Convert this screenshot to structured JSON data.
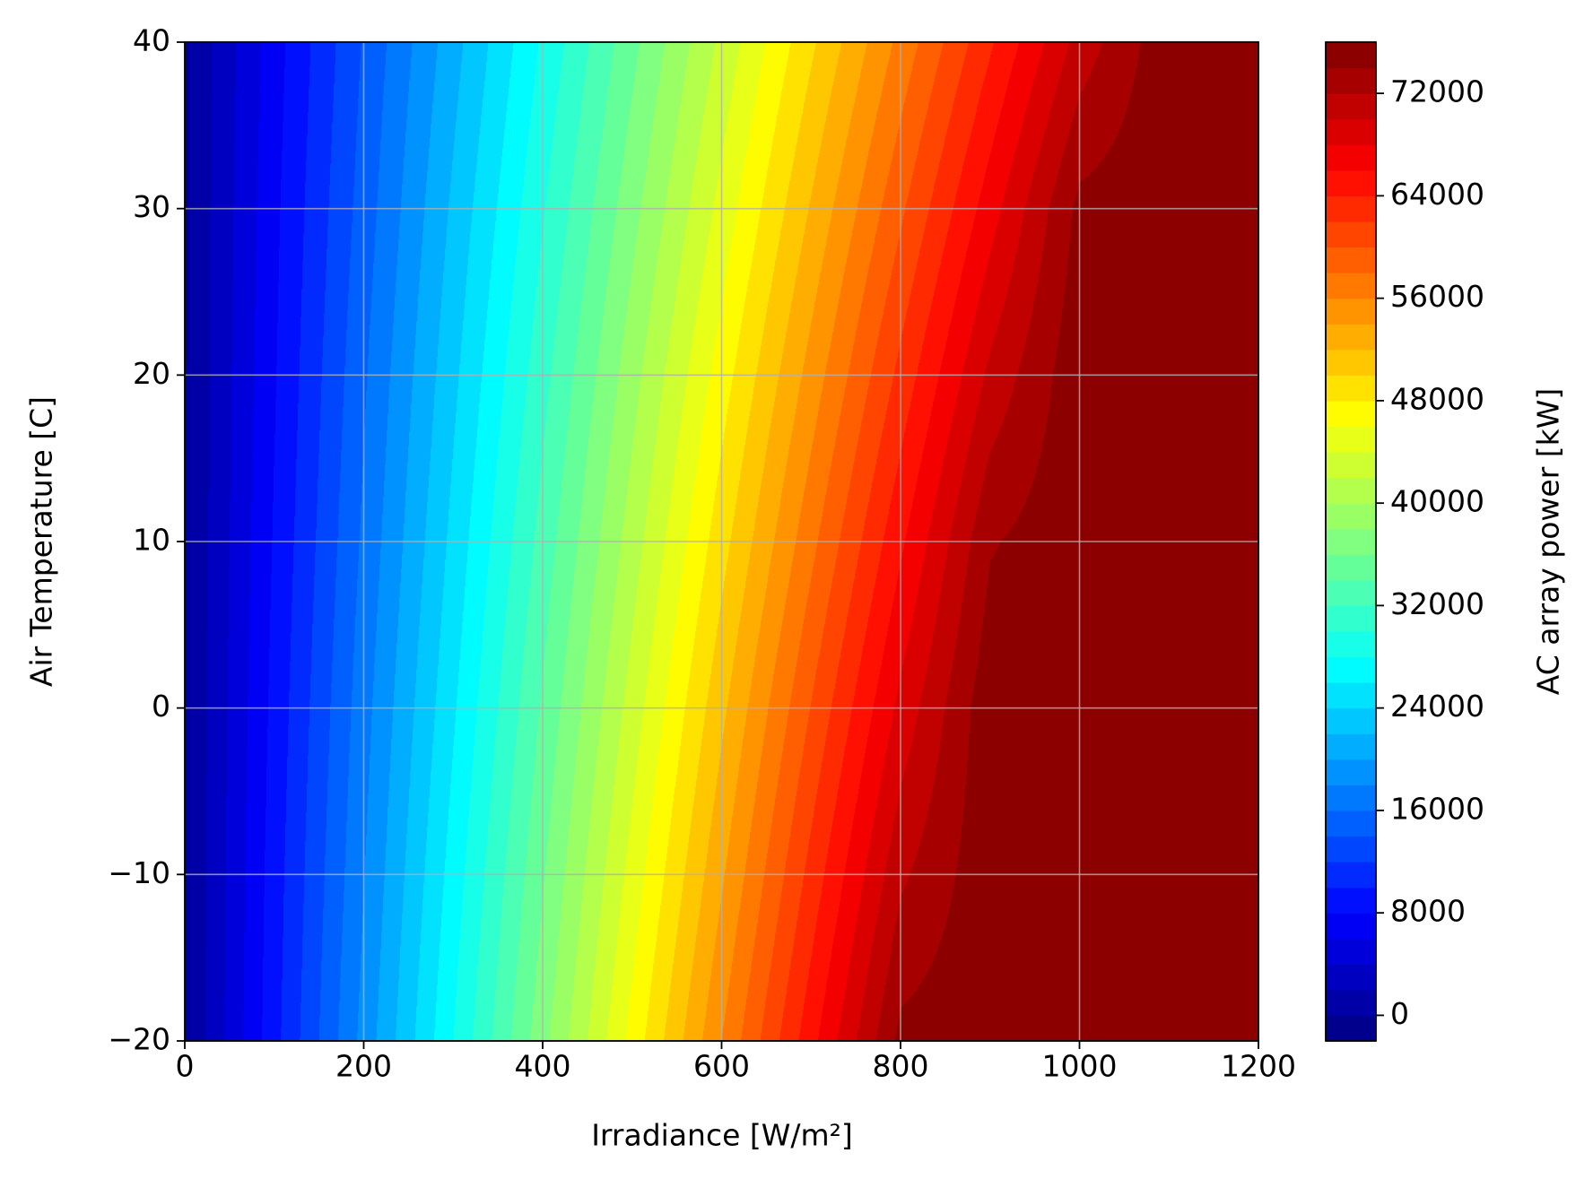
{
  "chart_data": {
    "type": "contourf",
    "xlabel": "Irradiance [W/m²]",
    "ylabel": "Air Temperature [C]",
    "colorbar_label": "AC array power [kW]",
    "colormap": "jet",
    "grid": true,
    "x": [
      0,
      100,
      200,
      300,
      400,
      500,
      600,
      700,
      800,
      900,
      1000,
      1100,
      1200
    ],
    "y": [
      -20,
      -10,
      0,
      10,
      20,
      30,
      40
    ],
    "z": [
      [
        -200,
        9300,
        18700,
        28000,
        37300,
        46700,
        56000,
        65300,
        74600,
        75500,
        75500,
        75500,
        75500
      ],
      [
        -200,
        9000,
        17900,
        26900,
        35800,
        44800,
        53700,
        62700,
        71600,
        75500,
        75500,
        75500,
        75500
      ],
      [
        -200,
        8600,
        17200,
        25700,
        34300,
        42900,
        51500,
        60100,
        68600,
        75500,
        75500,
        75500,
        75500
      ],
      [
        -200,
        8200,
        16400,
        24600,
        32800,
        41000,
        49200,
        57400,
        65600,
        73800,
        75500,
        75500,
        75500
      ],
      [
        -200,
        7800,
        15700,
        23500,
        31300,
        39200,
        47000,
        54800,
        62600,
        70500,
        75500,
        75500,
        75500
      ],
      [
        -200,
        7500,
        14900,
        22400,
        29800,
        37300,
        44700,
        52200,
        59600,
        67100,
        74600,
        75500,
        75500
      ],
      [
        -200,
        7100,
        14200,
        21200,
        28300,
        35400,
        42500,
        49600,
        56600,
        63700,
        70800,
        75500,
        75500
      ]
    ],
    "levels": [
      -2000,
      0,
      2000,
      4000,
      6000,
      8000,
      10000,
      12000,
      14000,
      16000,
      18000,
      20000,
      22000,
      24000,
      26000,
      28000,
      30000,
      32000,
      34000,
      36000,
      38000,
      40000,
      42000,
      44000,
      46000,
      48000,
      50000,
      52000,
      54000,
      56000,
      58000,
      60000,
      62000,
      64000,
      66000,
      68000,
      70000,
      72000,
      74000,
      76000
    ],
    "xlim": [
      0,
      1200
    ],
    "xticks": [
      0,
      200,
      400,
      600,
      800,
      1000,
      1200
    ],
    "ylim": [
      -20,
      40
    ],
    "yticks": [
      {
        "value": -20,
        "label": "−20"
      },
      {
        "value": -10,
        "label": "−10"
      },
      0,
      10,
      20,
      30,
      40
    ],
    "clim": [
      -2000,
      76000
    ],
    "cticks": [
      0,
      8000,
      16000,
      24000,
      32000,
      40000,
      48000,
      56000,
      64000,
      72000
    ]
  }
}
